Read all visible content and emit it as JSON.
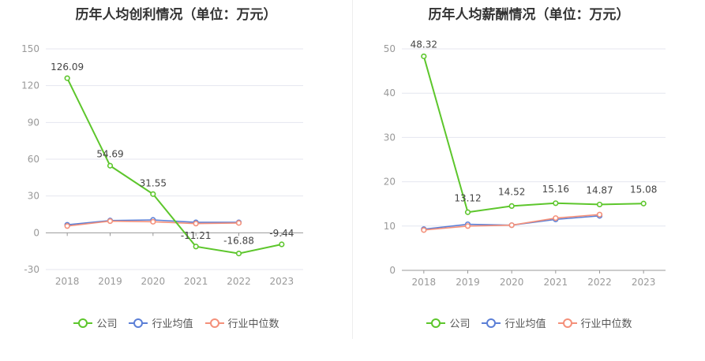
{
  "chart_data": [
    {
      "type": "line",
      "title": "历年人均创利情况（单位：万元）",
      "categories": [
        "2018",
        "2019",
        "2020",
        "2021",
        "2022",
        "2023"
      ],
      "ylim": [
        -30,
        150
      ],
      "yticks": [
        -30,
        0,
        30,
        60,
        90,
        120,
        150
      ],
      "legend_position": "bottom",
      "series": [
        {
          "name": "公司",
          "color": "#5dc62c",
          "values": [
            126.09,
            54.69,
            31.55,
            -11.21,
            -16.88,
            -9.44
          ],
          "labels": [
            "126.09",
            "54.69",
            "31.55",
            "-11.21",
            "-16.88",
            "-9.44"
          ]
        },
        {
          "name": "行业均值",
          "color": "#5b7fd6",
          "values": [
            6.5,
            10.0,
            10.5,
            8.5,
            8.5,
            null
          ]
        },
        {
          "name": "行业中位数",
          "color": "#f4907a",
          "values": [
            5.5,
            9.5,
            9.0,
            7.5,
            8.0,
            null
          ]
        }
      ]
    },
    {
      "type": "line",
      "title": "历年人均薪酬情况（单位：万元）",
      "categories": [
        "2018",
        "2019",
        "2020",
        "2021",
        "2022",
        "2023"
      ],
      "ylim": [
        0,
        50
      ],
      "yticks": [
        0,
        10,
        20,
        30,
        40,
        50
      ],
      "legend_position": "bottom",
      "series": [
        {
          "name": "公司",
          "color": "#5dc62c",
          "values": [
            48.32,
            13.12,
            14.52,
            15.16,
            14.87,
            15.08
          ],
          "labels": [
            "48.32",
            "13.12",
            "14.52",
            "15.16",
            "14.87",
            "15.08"
          ]
        },
        {
          "name": "行业均值",
          "color": "#5b7fd6",
          "values": [
            9.3,
            10.4,
            10.2,
            11.5,
            12.3,
            null
          ]
        },
        {
          "name": "行业中位数",
          "color": "#f4907a",
          "values": [
            9.1,
            10.0,
            10.2,
            11.8,
            12.6,
            null
          ]
        }
      ]
    }
  ]
}
